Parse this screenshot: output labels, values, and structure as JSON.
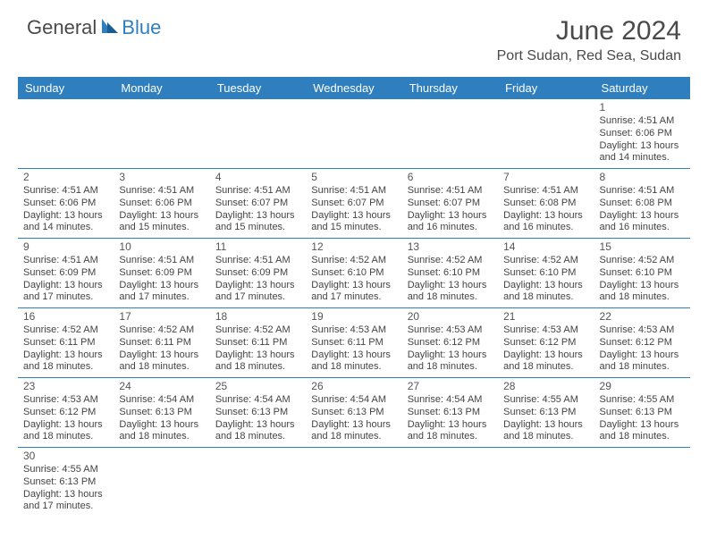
{
  "logo": {
    "text1": "General",
    "text2": "Blue"
  },
  "title": "June 2024",
  "location": "Port Sudan, Red Sea, Sudan",
  "colors": {
    "header_bg": "#2f7fbf",
    "text": "#444444",
    "border": "#2f7fbf"
  },
  "weekdays": [
    "Sunday",
    "Monday",
    "Tuesday",
    "Wednesday",
    "Thursday",
    "Friday",
    "Saturday"
  ],
  "weeks": [
    [
      null,
      null,
      null,
      null,
      null,
      null,
      {
        "n": "1",
        "sr": "4:51 AM",
        "ss": "6:06 PM",
        "dl": "13 hours and 14 minutes."
      }
    ],
    [
      {
        "n": "2",
        "sr": "4:51 AM",
        "ss": "6:06 PM",
        "dl": "13 hours and 14 minutes."
      },
      {
        "n": "3",
        "sr": "4:51 AM",
        "ss": "6:06 PM",
        "dl": "13 hours and 15 minutes."
      },
      {
        "n": "4",
        "sr": "4:51 AM",
        "ss": "6:07 PM",
        "dl": "13 hours and 15 minutes."
      },
      {
        "n": "5",
        "sr": "4:51 AM",
        "ss": "6:07 PM",
        "dl": "13 hours and 15 minutes."
      },
      {
        "n": "6",
        "sr": "4:51 AM",
        "ss": "6:07 PM",
        "dl": "13 hours and 16 minutes."
      },
      {
        "n": "7",
        "sr": "4:51 AM",
        "ss": "6:08 PM",
        "dl": "13 hours and 16 minutes."
      },
      {
        "n": "8",
        "sr": "4:51 AM",
        "ss": "6:08 PM",
        "dl": "13 hours and 16 minutes."
      }
    ],
    [
      {
        "n": "9",
        "sr": "4:51 AM",
        "ss": "6:09 PM",
        "dl": "13 hours and 17 minutes."
      },
      {
        "n": "10",
        "sr": "4:51 AM",
        "ss": "6:09 PM",
        "dl": "13 hours and 17 minutes."
      },
      {
        "n": "11",
        "sr": "4:51 AM",
        "ss": "6:09 PM",
        "dl": "13 hours and 17 minutes."
      },
      {
        "n": "12",
        "sr": "4:52 AM",
        "ss": "6:10 PM",
        "dl": "13 hours and 17 minutes."
      },
      {
        "n": "13",
        "sr": "4:52 AM",
        "ss": "6:10 PM",
        "dl": "13 hours and 18 minutes."
      },
      {
        "n": "14",
        "sr": "4:52 AM",
        "ss": "6:10 PM",
        "dl": "13 hours and 18 minutes."
      },
      {
        "n": "15",
        "sr": "4:52 AM",
        "ss": "6:10 PM",
        "dl": "13 hours and 18 minutes."
      }
    ],
    [
      {
        "n": "16",
        "sr": "4:52 AM",
        "ss": "6:11 PM",
        "dl": "13 hours and 18 minutes."
      },
      {
        "n": "17",
        "sr": "4:52 AM",
        "ss": "6:11 PM",
        "dl": "13 hours and 18 minutes."
      },
      {
        "n": "18",
        "sr": "4:52 AM",
        "ss": "6:11 PM",
        "dl": "13 hours and 18 minutes."
      },
      {
        "n": "19",
        "sr": "4:53 AM",
        "ss": "6:11 PM",
        "dl": "13 hours and 18 minutes."
      },
      {
        "n": "20",
        "sr": "4:53 AM",
        "ss": "6:12 PM",
        "dl": "13 hours and 18 minutes."
      },
      {
        "n": "21",
        "sr": "4:53 AM",
        "ss": "6:12 PM",
        "dl": "13 hours and 18 minutes."
      },
      {
        "n": "22",
        "sr": "4:53 AM",
        "ss": "6:12 PM",
        "dl": "13 hours and 18 minutes."
      }
    ],
    [
      {
        "n": "23",
        "sr": "4:53 AM",
        "ss": "6:12 PM",
        "dl": "13 hours and 18 minutes."
      },
      {
        "n": "24",
        "sr": "4:54 AM",
        "ss": "6:13 PM",
        "dl": "13 hours and 18 minutes."
      },
      {
        "n": "25",
        "sr": "4:54 AM",
        "ss": "6:13 PM",
        "dl": "13 hours and 18 minutes."
      },
      {
        "n": "26",
        "sr": "4:54 AM",
        "ss": "6:13 PM",
        "dl": "13 hours and 18 minutes."
      },
      {
        "n": "27",
        "sr": "4:54 AM",
        "ss": "6:13 PM",
        "dl": "13 hours and 18 minutes."
      },
      {
        "n": "28",
        "sr": "4:55 AM",
        "ss": "6:13 PM",
        "dl": "13 hours and 18 minutes."
      },
      {
        "n": "29",
        "sr": "4:55 AM",
        "ss": "6:13 PM",
        "dl": "13 hours and 18 minutes."
      }
    ],
    [
      {
        "n": "30",
        "sr": "4:55 AM",
        "ss": "6:13 PM",
        "dl": "13 hours and 17 minutes."
      },
      null,
      null,
      null,
      null,
      null,
      null
    ]
  ],
  "labels": {
    "sunrise": "Sunrise: ",
    "sunset": "Sunset: ",
    "daylight": "Daylight: "
  }
}
